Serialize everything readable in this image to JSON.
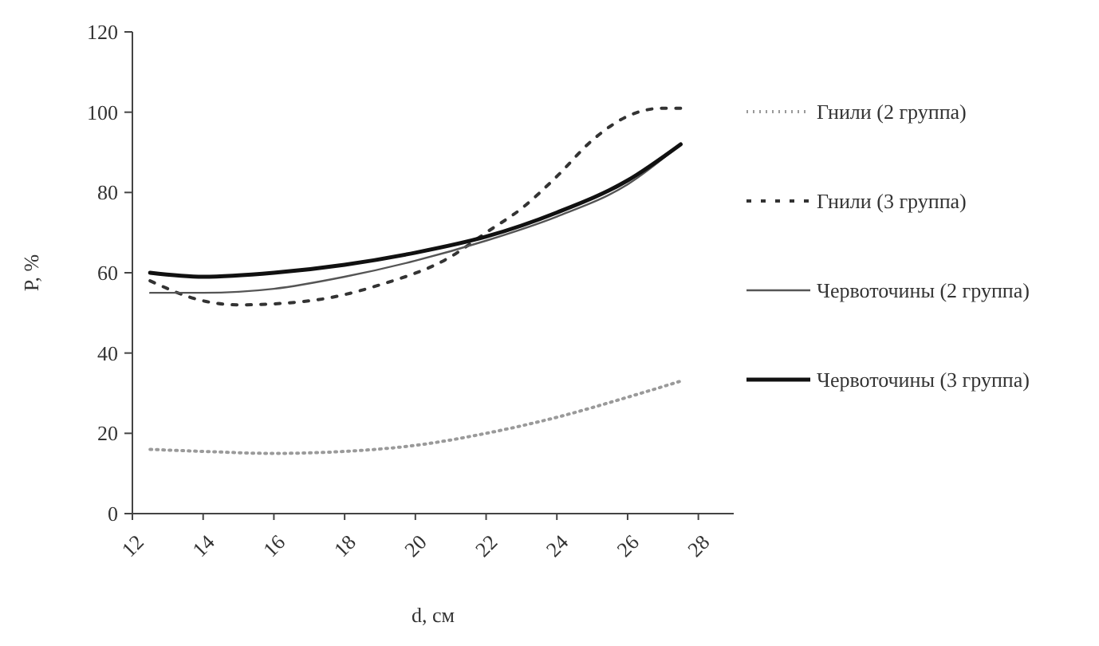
{
  "chart_data": {
    "type": "line",
    "xlabel": "d, см",
    "ylabel": "P, %",
    "xlim": [
      12,
      29
    ],
    "xticks": [
      12,
      14,
      16,
      18,
      20,
      22,
      24,
      26,
      28
    ],
    "ylim": [
      0,
      120
    ],
    "yticks": [
      0,
      20,
      40,
      60,
      80,
      100,
      120
    ],
    "grid": false,
    "legend": "right",
    "marker": "none",
    "series": [
      {
        "name": "Гнили (2 группа)",
        "color": "#9a9a9a",
        "line_style": "dotted",
        "x": [
          12.5,
          14,
          16,
          18,
          20,
          22,
          24,
          26,
          27.5
        ],
        "values": [
          16,
          15.5,
          15,
          15.5,
          17,
          20,
          24,
          29,
          33
        ]
      },
      {
        "name": "Гнили (3 группа)",
        "color": "#333333",
        "line_style": "dashed",
        "x": [
          12.5,
          14,
          15,
          17,
          19,
          21,
          22,
          23,
          24,
          25,
          26,
          27,
          27.5
        ],
        "values": [
          58,
          53,
          52,
          53,
          57,
          64,
          70,
          76,
          84,
          93,
          99,
          101,
          101
        ]
      },
      {
        "name": "Червоточины (2 группа)",
        "color": "#555555",
        "line_style": "solid",
        "x": [
          12.5,
          14,
          16,
          18,
          20,
          22,
          24,
          26,
          27.5
        ],
        "values": [
          55,
          55,
          56,
          59,
          63,
          68,
          74,
          82,
          92
        ]
      },
      {
        "name": "Червоточины (3 группа)",
        "color": "#111111",
        "line_style": "solid",
        "x": [
          12.5,
          14,
          16,
          18,
          20,
          22,
          24,
          26,
          27.5
        ],
        "values": [
          60,
          59,
          60,
          62,
          65,
          69,
          75,
          83,
          92
        ]
      }
    ]
  }
}
